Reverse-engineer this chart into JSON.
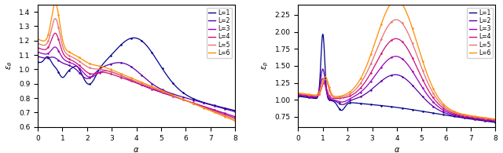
{
  "colors": [
    "#00008B",
    "#5500AA",
    "#9900BB",
    "#CC1177",
    "#E87070",
    "#FF8C00"
  ],
  "labels": [
    "L=1",
    "L=2",
    "L=3",
    "L=4",
    "L=5",
    "L=6"
  ],
  "ylabel_left": "$\\varepsilon_\\theta$",
  "ylabel_right": "$\\varepsilon_p$",
  "xlabel": "$\\alpha$",
  "xlim": [
    0,
    8
  ],
  "ylim_left": [
    0.6,
    1.45
  ],
  "ylim_right": [
    0.6,
    2.4
  ],
  "yticks_left": [
    0.6,
    0.7,
    0.8,
    0.9,
    1.0,
    1.1,
    1.2,
    1.3,
    1.4
  ],
  "yticks_right": [
    0.75,
    1.0,
    1.25,
    1.5,
    1.75,
    2.0,
    2.25
  ]
}
